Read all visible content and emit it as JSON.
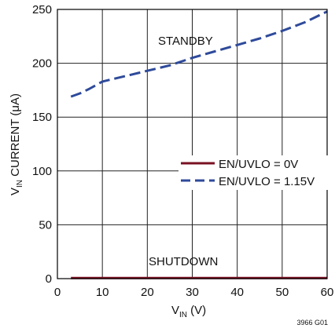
{
  "chart_data": {
    "type": "line",
    "x": [
      3,
      5,
      7,
      10,
      15,
      20,
      25,
      30,
      35,
      40,
      45,
      50,
      55,
      60
    ],
    "series": [
      {
        "name": "EN/UVLO = 0V",
        "color": "#7a1022",
        "dash": "solid",
        "values": [
          0.5,
          0.5,
          0.5,
          0.5,
          0.5,
          0.5,
          0.5,
          0.5,
          0.5,
          0.5,
          0.5,
          0.5,
          0.5,
          0.5
        ]
      },
      {
        "name": "EN/UVLO = 1.15V",
        "color": "#2e4a9a",
        "dash": "dashed",
        "values": [
          169,
          172,
          176,
          183,
          188,
          193,
          198,
          205,
          211,
          217,
          223,
          230,
          238,
          248
        ]
      }
    ],
    "xlim": [
      0,
      60
    ],
    "ylim": [
      0,
      250
    ],
    "xticks": [
      "0",
      "10",
      "20",
      "30",
      "40",
      "50",
      "60"
    ],
    "yticks": [
      "0",
      "50",
      "100",
      "150",
      "200",
      "250"
    ],
    "grid": true,
    "legend_position": "right",
    "xlabel": {
      "main": "V",
      "sub": "IN",
      "rest": " (V)"
    },
    "ylabel": {
      "main": "V",
      "sub": "IN",
      "rest": " CURRENT (μA)"
    },
    "annotations": [
      "STANDBY",
      "SHUTDOWN"
    ],
    "figure_id": "3966 G01"
  }
}
